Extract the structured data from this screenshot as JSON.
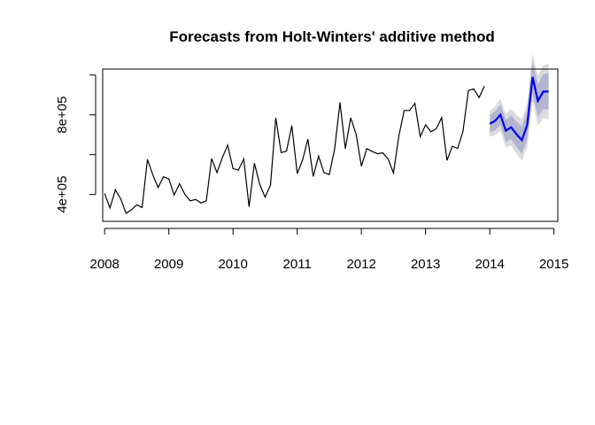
{
  "chart_data": {
    "type": "line",
    "title": "Forecasts from Holt-Winters' additive method",
    "xlabel": "",
    "ylabel": "",
    "xlim": [
      2007.97,
      2015.06
    ],
    "ylim": [
      265000,
      1030000
    ],
    "x_ticks": [
      2008,
      2009,
      2010,
      2011,
      2012,
      2013,
      2014,
      2015
    ],
    "x_tick_labels": [
      "2008",
      "2009",
      "2010",
      "2011",
      "2012",
      "2013",
      "2014",
      "2015"
    ],
    "y_ticks": [
      400000,
      600000,
      800000,
      1000000
    ],
    "y_tick_labels": [
      "4e+05",
      "8e+05"
    ],
    "grid": false,
    "series": [
      {
        "name": "observed",
        "color": "#000000",
        "start": 2008.0,
        "frequency": 12,
        "values": [
          405000,
          332000,
          424000,
          378000,
          306000,
          323000,
          348000,
          335000,
          576000,
          500000,
          435000,
          489000,
          478000,
          397000,
          454000,
          400000,
          368000,
          375000,
          357000,
          368000,
          580000,
          510000,
          585000,
          648000,
          530000,
          522000,
          578000,
          338000,
          557000,
          450000,
          387000,
          447000,
          785000,
          610000,
          618000,
          746000,
          505000,
          572000,
          678000,
          490000,
          593000,
          510000,
          500000,
          630000,
          862000,
          630000,
          785000,
          705000,
          542000,
          630000,
          617000,
          605000,
          609000,
          578000,
          508000,
          695000,
          822000,
          822000,
          858000,
          690000,
          750000,
          715000,
          730000,
          786000,
          571000,
          642000,
          632000,
          717000,
          922000,
          931000,
          887000,
          944000
        ]
      },
      {
        "name": "forecast",
        "color": "#0000ee",
        "start": 2014.0,
        "frequency": 12,
        "values": [
          755000,
          770000,
          800000,
          720000,
          738000,
          702000,
          673000,
          748000,
          990000,
          870000,
          917000,
          917000
        ]
      }
    ],
    "intervals": {
      "level_80": {
        "color": "#b1b5ce",
        "lower": [
          712000,
          722000,
          748000,
          664000,
          678000,
          638000,
          605000,
          676000,
          912000,
          788000,
          830000,
          825000
        ],
        "upper": [
          798000,
          818000,
          852000,
          776000,
          798000,
          766000,
          741000,
          820000,
          1068000,
          952000,
          1004000,
          1009000
        ]
      },
      "level_95": {
        "color": "#dbdbdf",
        "lower": [
          690000,
          698000,
          720000,
          635000,
          647000,
          604000,
          569000,
          638000,
          871000,
          745000,
          784000,
          777000
        ],
        "upper": [
          820000,
          842000,
          880000,
          805000,
          829000,
          800000,
          777000,
          858000,
          1109000,
          995000,
          1050000,
          1057000
        ]
      }
    }
  }
}
